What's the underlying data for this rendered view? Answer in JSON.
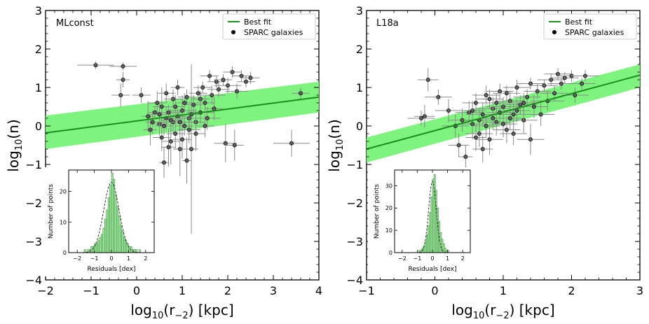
{
  "colors": {
    "fit_line": "#1a8f1a",
    "band": "#77f377",
    "point_fill": "#606060",
    "error_bar": "#8a8a8a",
    "hist_fill": "#9fe79f",
    "gauss": "#333333"
  },
  "chart_data": [
    {
      "type": "scatter",
      "panel_label": "MLconst",
      "xlabel_main": "log",
      "xlabel_sub": "10",
      "xlabel_arg": "(r",
      "xlabel_argsub": "−2",
      "xlabel_tail": ")  [kpc]",
      "ylabel_main": "log",
      "ylabel_sub": "10",
      "ylabel_tail": "(n)",
      "xlim": [
        -2,
        4
      ],
      "ylim": [
        -4,
        3
      ],
      "xticks": [
        -2,
        -1,
        0,
        1,
        2,
        3,
        4
      ],
      "yticks": [
        -4,
        -3,
        -2,
        -1,
        0,
        1,
        2,
        3
      ],
      "xtick_labels": [
        "−2",
        "−1",
        "0",
        "1",
        "2",
        "3",
        "4"
      ],
      "ytick_labels": [
        "−4",
        "−3",
        "−2",
        "−1",
        "0",
        "1",
        "2",
        "3"
      ],
      "legend": [
        "Best fit",
        "SPARC galaxies"
      ],
      "fit": {
        "slope": 0.155,
        "intercept": 0.13
      },
      "band": {
        "upper_at_xmin": 0.27,
        "upper_at_xmax": 1.15,
        "lower_at_xmin": -0.6,
        "lower_at_xmax": 0.35
      },
      "points": [
        [
          -0.3,
          1.55,
          0.3,
          0.1
        ],
        [
          -0.9,
          1.58,
          0.4,
          0.1
        ],
        [
          -0.35,
          0.8,
          0.2,
          0.3
        ],
        [
          -0.3,
          1.2,
          0.15,
          0.2
        ],
        [
          0.1,
          0.8,
          0.2,
          0.2
        ],
        [
          0.25,
          0.25,
          0.15,
          0.4
        ],
        [
          0.4,
          0.35,
          0.15,
          0.15
        ],
        [
          0.5,
          0.05,
          0.2,
          0.3
        ],
        [
          0.55,
          0.5,
          0.2,
          0.5
        ],
        [
          0.6,
          -0.95,
          0.1,
          0.4
        ],
        [
          0.65,
          0.2,
          0.2,
          0.3
        ],
        [
          0.7,
          0.35,
          0.25,
          0.2
        ],
        [
          0.75,
          -0.4,
          0.2,
          0.6
        ],
        [
          0.8,
          0.1,
          0.3,
          0.3
        ],
        [
          0.85,
          0.5,
          0.2,
          0.3
        ],
        [
          0.9,
          0.25,
          0.2,
          0.2
        ],
        [
          0.95,
          -0.6,
          0.15,
          0.7
        ],
        [
          1.0,
          0.4,
          0.3,
          0.4
        ],
        [
          1.05,
          0.0,
          0.2,
          0.25
        ],
        [
          1.1,
          -0.9,
          0.1,
          0.6
        ],
        [
          1.1,
          0.75,
          0.2,
          0.2
        ],
        [
          1.15,
          0.2,
          0.3,
          0.3
        ],
        [
          1.2,
          -0.6,
          0.15,
          2.2
        ],
        [
          1.25,
          0.55,
          0.2,
          0.25
        ],
        [
          1.3,
          0.1,
          0.2,
          0.35
        ],
        [
          1.35,
          0.85,
          0.2,
          0.2
        ],
        [
          1.4,
          0.35,
          0.3,
          0.3
        ],
        [
          1.45,
          1.0,
          0.2,
          0.15
        ],
        [
          1.5,
          0.6,
          0.2,
          0.2
        ],
        [
          1.55,
          0.2,
          0.3,
          0.3
        ],
        [
          1.6,
          1.3,
          0.2,
          0.15
        ],
        [
          1.65,
          0.8,
          0.3,
          0.25
        ],
        [
          1.7,
          0.45,
          0.2,
          0.3
        ],
        [
          1.75,
          1.15,
          0.2,
          0.15
        ],
        [
          1.8,
          0.95,
          0.25,
          0.2
        ],
        [
          1.9,
          1.2,
          0.2,
          0.15
        ],
        [
          2.0,
          1.05,
          0.3,
          0.2
        ],
        [
          2.1,
          1.4,
          0.2,
          0.15
        ],
        [
          2.2,
          0.9,
          0.25,
          0.2
        ],
        [
          2.3,
          1.3,
          0.2,
          0.15
        ],
        [
          2.4,
          1.15,
          0.2,
          0.15
        ],
        [
          2.5,
          1.25,
          0.2,
          0.15
        ],
        [
          1.95,
          -0.45,
          0.25,
          0.5
        ],
        [
          2.15,
          -0.5,
          0.2,
          0.4
        ],
        [
          3.4,
          -0.45,
          0.4,
          0.35
        ],
        [
          3.6,
          0.85,
          0.2,
          0.15
        ],
        [
          0.3,
          -0.1,
          0.15,
          0.4
        ],
        [
          0.45,
          0.6,
          0.2,
          0.3
        ],
        [
          0.55,
          -0.3,
          0.2,
          0.35
        ],
        [
          0.65,
          0.85,
          0.2,
          0.25
        ],
        [
          0.7,
          -0.55,
          0.15,
          0.5
        ],
        [
          0.8,
          0.7,
          0.2,
          0.25
        ],
        [
          0.85,
          -0.2,
          0.2,
          0.4
        ],
        [
          0.9,
          1.0,
          0.15,
          0.2
        ],
        [
          1.0,
          -0.35,
          0.2,
          0.5
        ],
        [
          1.05,
          0.6,
          0.2,
          0.25
        ],
        [
          1.2,
          0.3,
          0.2,
          0.3
        ],
        [
          1.3,
          -0.2,
          0.2,
          0.45
        ],
        [
          1.4,
          0.7,
          0.2,
          0.2
        ],
        [
          1.5,
          0.0,
          0.2,
          0.3
        ],
        [
          0.6,
          0.0,
          0.2,
          0.25
        ],
        [
          0.75,
          0.15,
          0.25,
          0.3
        ],
        [
          0.95,
          0.1,
          0.2,
          0.3
        ],
        [
          1.15,
          -0.1,
          0.25,
          0.35
        ],
        [
          0.5,
          0.3,
          0.2,
          0.3
        ],
        [
          0.35,
          0.1,
          0.15,
          0.3
        ]
      ],
      "inset": {
        "xlabel": "Residuals [dex]",
        "ylabel": "Number of points",
        "xlim": [
          -2.5,
          2.5
        ],
        "ylim": [
          0,
          27
        ],
        "xticks": [
          -2,
          -1,
          0,
          1,
          2
        ],
        "xtick_labels": [
          "−2",
          "−1",
          "0",
          "1",
          "2"
        ],
        "yticks": [
          0,
          10,
          20
        ],
        "ytick_labels": [
          "0",
          "10",
          "20"
        ],
        "bin_start": -1.6,
        "bin_width": 0.1,
        "counts": [
          1,
          0,
          1,
          1,
          2,
          2,
          3,
          3,
          4,
          5,
          6,
          8,
          11,
          14,
          18,
          22,
          26,
          24,
          19,
          15,
          12,
          9,
          7,
          5,
          4,
          3,
          2,
          2,
          1,
          1,
          1,
          0,
          1
        ],
        "gauss": {
          "mu": 0.0,
          "sigma": 0.45,
          "amp": 23
        }
      }
    },
    {
      "type": "scatter",
      "panel_label": "L18a",
      "xlabel_main": "log",
      "xlabel_sub": "10",
      "xlabel_arg": "(r",
      "xlabel_argsub": "−2",
      "xlabel_tail": ")  [kpc]",
      "ylabel_main": "log",
      "ylabel_sub": "10",
      "ylabel_tail": "(n)",
      "xlim": [
        -1,
        3
      ],
      "ylim": [
        -4,
        3
      ],
      "xticks": [
        -1,
        0,
        1,
        2,
        3
      ],
      "yticks": [
        -4,
        -3,
        -2,
        -1,
        0,
        1,
        2,
        3
      ],
      "xtick_labels": [
        "−1",
        "0",
        "1",
        "2",
        "3"
      ],
      "ytick_labels": [
        "−4",
        "−3",
        "−2",
        "−1",
        "0",
        "1",
        "2",
        "3"
      ],
      "legend": [
        "Best fit",
        "SPARC galaxies"
      ],
      "fit": {
        "slope": 0.48,
        "intercept": -0.12
      },
      "band": {
        "upper_at_xmin": -0.3,
        "upper_at_xmax": 1.6,
        "lower_at_xmin": -0.95,
        "lower_at_xmax": 1.0
      },
      "points": [
        [
          -0.1,
          1.2,
          0.15,
          0.3
        ],
        [
          0.05,
          0.75,
          0.2,
          0.2
        ],
        [
          -0.15,
          0.25,
          0.15,
          0.3
        ],
        [
          -0.2,
          0.2,
          0.2,
          0.2
        ],
        [
          0.2,
          0.4,
          0.2,
          0.3
        ],
        [
          0.3,
          0.0,
          0.2,
          0.3
        ],
        [
          0.35,
          -0.5,
          0.15,
          0.3
        ],
        [
          0.4,
          0.15,
          0.2,
          0.3
        ],
        [
          0.45,
          -0.8,
          0.1,
          0.3
        ],
        [
          0.5,
          0.35,
          0.2,
          0.3
        ],
        [
          0.55,
          0.05,
          0.2,
          0.4
        ],
        [
          0.6,
          0.6,
          0.2,
          0.25
        ],
        [
          0.65,
          -0.2,
          0.2,
          0.35
        ],
        [
          0.7,
          0.3,
          0.25,
          0.3
        ],
        [
          0.75,
          0.8,
          0.2,
          0.25
        ],
        [
          0.8,
          -0.35,
          0.2,
          0.4
        ],
        [
          0.85,
          0.45,
          0.25,
          0.3
        ],
        [
          0.9,
          0.1,
          0.2,
          0.35
        ],
        [
          0.95,
          0.9,
          0.2,
          0.2
        ],
        [
          1.0,
          0.5,
          0.25,
          0.25
        ],
        [
          1.05,
          -0.1,
          0.2,
          0.35
        ],
        [
          1.1,
          0.65,
          0.2,
          0.25
        ],
        [
          1.15,
          0.3,
          0.2,
          0.3
        ],
        [
          1.2,
          1.0,
          0.2,
          0.2
        ],
        [
          1.25,
          0.55,
          0.25,
          0.25
        ],
        [
          1.3,
          0.15,
          0.2,
          0.35
        ],
        [
          1.35,
          0.75,
          0.2,
          0.2
        ],
        [
          1.4,
          1.1,
          0.2,
          0.15
        ],
        [
          1.45,
          0.5,
          0.2,
          0.3
        ],
        [
          1.5,
          0.9,
          0.2,
          0.2
        ],
        [
          1.55,
          0.3,
          0.2,
          0.3
        ],
        [
          1.6,
          1.05,
          0.2,
          0.15
        ],
        [
          1.65,
          0.65,
          0.25,
          0.25
        ],
        [
          1.7,
          1.2,
          0.2,
          0.15
        ],
        [
          1.75,
          0.85,
          0.2,
          0.2
        ],
        [
          1.8,
          1.35,
          0.2,
          0.15
        ],
        [
          1.85,
          1.1,
          0.2,
          0.15
        ],
        [
          1.9,
          1.25,
          0.2,
          0.15
        ],
        [
          2.0,
          1.3,
          0.2,
          0.15
        ],
        [
          2.05,
          0.8,
          0.2,
          0.2
        ],
        [
          2.15,
          1.1,
          0.2,
          0.15
        ],
        [
          2.2,
          1.3,
          0.2,
          0.15
        ],
        [
          0.75,
          0.0,
          0.2,
          0.3
        ],
        [
          0.85,
          0.2,
          0.2,
          0.3
        ],
        [
          0.95,
          0.35,
          0.2,
          0.3
        ],
        [
          1.0,
          0.05,
          0.2,
          0.35
        ],
        [
          1.1,
          0.2,
          0.2,
          0.3
        ],
        [
          1.2,
          0.4,
          0.2,
          0.3
        ],
        [
          0.65,
          0.15,
          0.2,
          0.3
        ],
        [
          0.55,
          0.4,
          0.2,
          0.25
        ],
        [
          0.9,
          0.6,
          0.2,
          0.25
        ],
        [
          1.3,
          0.6,
          0.2,
          0.25
        ],
        [
          1.4,
          -0.35,
          0.2,
          0.4
        ],
        [
          0.7,
          -0.6,
          0.15,
          0.35
        ],
        [
          1.15,
          -0.2,
          0.2,
          0.3
        ],
        [
          1.05,
          0.85,
          0.2,
          0.2
        ],
        [
          0.6,
          -0.3,
          0.15,
          0.35
        ],
        [
          0.8,
          0.7,
          0.2,
          0.25
        ]
      ],
      "inset": {
        "xlabel": "Residuals [dex]",
        "ylabel": "Number of points",
        "xlim": [
          -2.5,
          2.5
        ],
        "ylim": [
          0,
          37
        ],
        "xticks": [
          -2,
          -1,
          0,
          1,
          2
        ],
        "xtick_labels": [
          "−2",
          "−1",
          "0",
          "1",
          "2"
        ],
        "yticks": [
          0,
          10,
          20,
          30
        ],
        "ytick_labels": [
          "0",
          "10",
          "20",
          "30"
        ],
        "bin_start": -0.9,
        "bin_width": 0.1,
        "counts": [
          1,
          1,
          2,
          3,
          5,
          8,
          12,
          18,
          25,
          33,
          35,
          28,
          20,
          14,
          9,
          6,
          4,
          2,
          1,
          1
        ],
        "gauss": {
          "mu": 0.0,
          "sigma": 0.25,
          "amp": 32
        }
      }
    }
  ]
}
